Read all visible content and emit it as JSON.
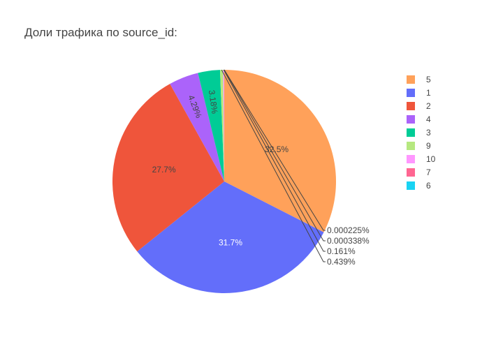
{
  "chart_data": {
    "type": "pie",
    "title": "Доли трафика по source_id:",
    "labels": [
      "5",
      "1",
      "2",
      "4",
      "3",
      "9",
      "10",
      "7",
      "6"
    ],
    "values": [
      32.5,
      31.7,
      27.7,
      4.29,
      3.18,
      0.439,
      0.161,
      0.000338,
      0.000225
    ],
    "text_labels": [
      "32.5%",
      "31.7%",
      "27.7%",
      "4.29%",
      "3.18%",
      "0.439%",
      "0.161%",
      "0.000338%",
      "0.000225%"
    ],
    "colors": [
      "#FFA15A",
      "#636EFA",
      "#EF553B",
      "#AB63FA",
      "#00CC96",
      "#B6E880",
      "#FF97FF",
      "#FF6692",
      "#19D3F3"
    ],
    "legend": {
      "position": "right",
      "entries": [
        "5",
        "1",
        "2",
        "4",
        "3",
        "9",
        "10",
        "7",
        "6"
      ]
    }
  }
}
